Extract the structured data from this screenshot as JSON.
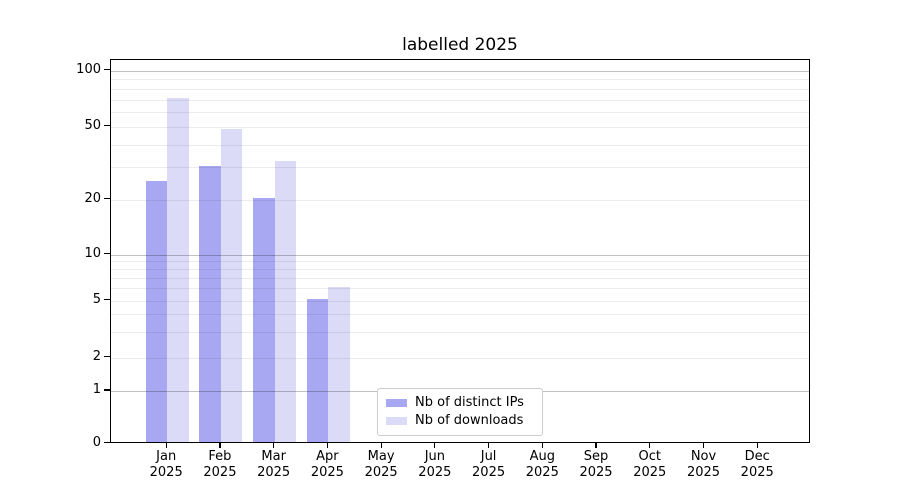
{
  "title": "labelled 2025",
  "chart_data": {
    "type": "bar",
    "title": "labelled 2025",
    "categories": [
      "Jan",
      "Feb",
      "Mar",
      "Apr",
      "May",
      "Jun",
      "Jul",
      "Aug",
      "Sep",
      "Oct",
      "Nov",
      "Dec"
    ],
    "category_year": "2025",
    "series": [
      {
        "name": "Nb of distinct IPs",
        "color": "#a8a8f2",
        "values": [
          25,
          30,
          20,
          5,
          0,
          0,
          0,
          0,
          0,
          0,
          0,
          0
        ]
      },
      {
        "name": "Nb of downloads",
        "color": "#dbdbf8",
        "values": [
          70,
          48,
          32,
          6,
          0,
          0,
          0,
          0,
          0,
          0,
          0,
          0
        ]
      }
    ],
    "y_axis": {
      "scale": "symlog",
      "tick_labels": [
        "0",
        "1",
        "2",
        "5",
        "10",
        "20",
        "50",
        "100"
      ],
      "tick_values": [
        0,
        1,
        2,
        5,
        10,
        20,
        50,
        100
      ],
      "major_gridline_values": [
        1,
        10,
        100
      ],
      "minor_gridline_values": [
        2,
        3,
        4,
        5,
        6,
        7,
        8,
        9,
        20,
        30,
        40,
        50,
        60,
        70,
        80,
        90
      ],
      "ylim": [
        0,
        115
      ]
    },
    "legend": {
      "entries": [
        "Nb of distinct IPs",
        "Nb of downloads"
      ],
      "position": "lower center"
    },
    "grid": "horizontal major+minor, drawn over bars",
    "xlabel": "",
    "ylabel": ""
  }
}
